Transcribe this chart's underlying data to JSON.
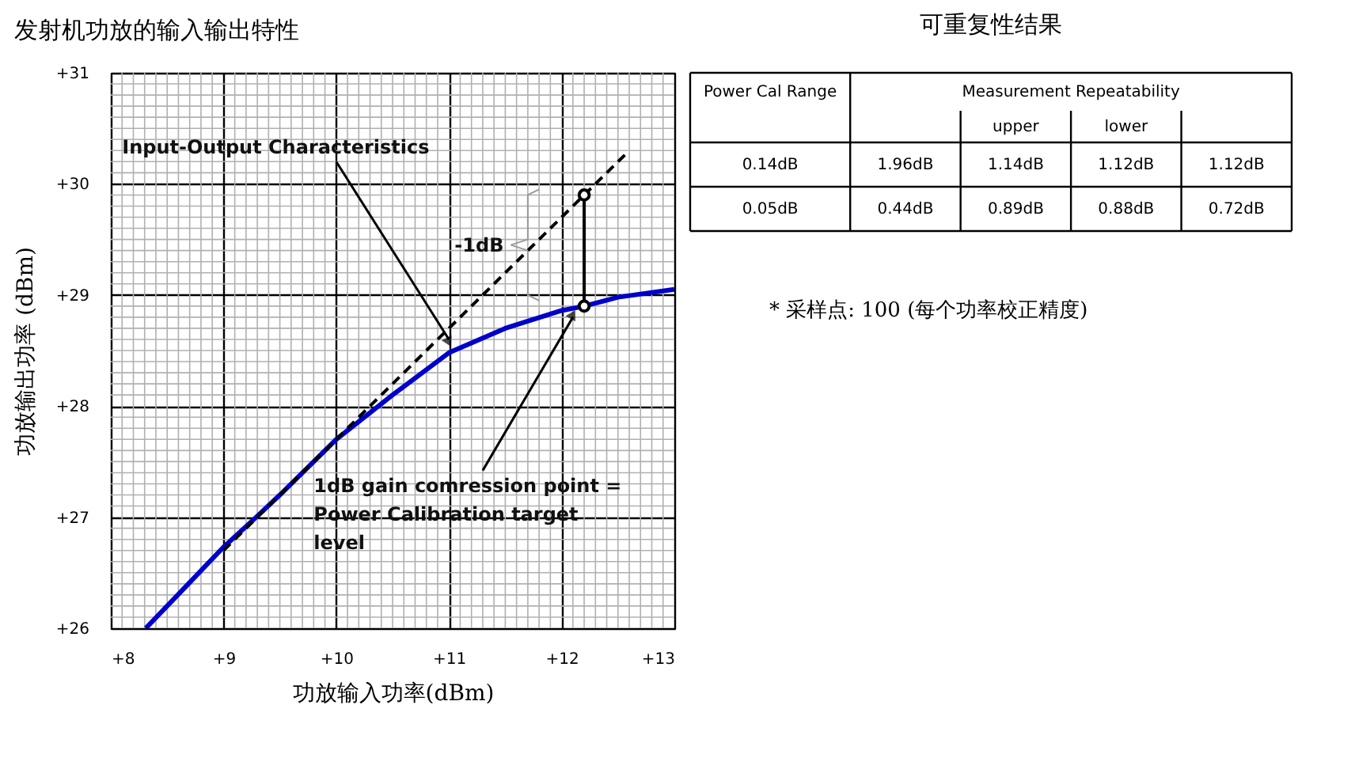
{
  "chart_data": [
    {
      "type": "line",
      "title": "发射机功放的输入输出特性",
      "xlabel": "功放输入功率(dBm)",
      "ylabel": "功放输出功率 (dBm)",
      "xlim": [
        8,
        13
      ],
      "ylim": [
        26,
        31
      ],
      "xticks": [
        {
          "value": 8,
          "label": "+8"
        },
        {
          "value": 9,
          "label": "+9"
        },
        {
          "value": 10,
          "label": "+10"
        },
        {
          "value": 11,
          "label": "+11"
        },
        {
          "value": 12,
          "label": "+12"
        },
        {
          "value": 13,
          "label": "+13"
        }
      ],
      "yticks": [
        {
          "value": 26,
          "label": "+26"
        },
        {
          "value": 27,
          "label": "+27"
        },
        {
          "value": 28,
          "label": "+28"
        },
        {
          "value": 29,
          "label": "+29"
        },
        {
          "value": 30,
          "label": "+30"
        },
        {
          "value": 31,
          "label": "+31"
        }
      ],
      "grid": true,
      "series": [
        {
          "type": "line",
          "color": "#0000cc",
          "line_style": "solid",
          "x": [
            8.31,
            8.5,
            9,
            9.29,
            9.5,
            10,
            10.5,
            11,
            11.5,
            12,
            12.2,
            12.5,
            13
          ],
          "values": [
            26,
            26.2,
            26.73,
            27,
            27.2,
            27.7,
            28.1,
            28.48,
            28.7,
            28.86,
            28.9,
            28.98,
            29.05
          ]
        },
        {
          "type": "line",
          "color": "#000000",
          "line_style": "dashed",
          "x": [
            9,
            12.6
          ],
          "values": [
            26.7,
            30.3
          ]
        },
        {
          "type": "line",
          "color": "#000000",
          "line_style": "solid",
          "x": [
            12.2,
            12.2
          ],
          "values": [
            29.9,
            28.9
          ]
        },
        {
          "type": "scatter",
          "color": "#000000",
          "marker": "circle",
          "x": [
            12.2,
            12.2
          ],
          "values": [
            29.9,
            28.9
          ]
        }
      ],
      "annotations": [
        {
          "text": "Input-Output Characteristics",
          "x": 11,
          "y": 28.6
        },
        "-1dB",
        {
          "text": "1dB gain comression point = Power Calibration target level",
          "x": 12.1,
          "y": 28.8
        }
      ]
    },
    {
      "type": "other",
      "title": "可重复性结果",
      "cells": [
        [
          "Power Cal Range",
          "Measurement Repeatability",
          null,
          null,
          null
        ],
        [
          null,
          null,
          "upper",
          "lower",
          null
        ],
        [
          "0.14dB",
          "1.96dB",
          "1.14dB",
          "1.12dB",
          "1.12dB"
        ],
        [
          "0.05dB",
          "0.44dB",
          "0.89dB",
          "0.88dB",
          "0.72dB"
        ]
      ],
      "annotations": [
        "* 采样点: 100 (每个功率校正精度)"
      ]
    }
  ]
}
